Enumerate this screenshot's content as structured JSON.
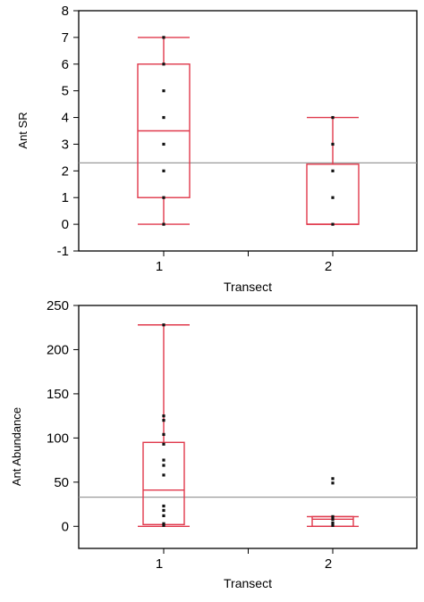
{
  "chart_data": [
    {
      "type": "box",
      "xlabel": "Transect",
      "ylabel": "Ant SR",
      "categories": [
        "1",
        "2"
      ],
      "ylim": [
        -1,
        8
      ],
      "yticks": [
        -1,
        0,
        1,
        2,
        3,
        4,
        5,
        6,
        7,
        8
      ],
      "reference_line": 2.3,
      "boxes": [
        {
          "category": "1",
          "whisker_low": 0,
          "q1": 1,
          "median": 3.5,
          "q3": 6,
          "whisker_high": 7,
          "points": [
            0,
            1,
            2,
            3,
            4,
            5,
            6,
            7
          ]
        },
        {
          "category": "2",
          "whisker_low": 0,
          "q1": 0,
          "median": 0,
          "q3": 2.25,
          "whisker_high": 4,
          "points": [
            0,
            1,
            2,
            3,
            4
          ]
        }
      ]
    },
    {
      "type": "box",
      "xlabel": "Transect",
      "ylabel": "Ant Abundance",
      "categories": [
        "1",
        "2"
      ],
      "ylim": [
        -25,
        250
      ],
      "yticks": [
        0,
        50,
        100,
        150,
        200,
        250
      ],
      "reference_line": 33,
      "boxes": [
        {
          "category": "1",
          "whisker_low": 0,
          "q1": 2,
          "median": 41,
          "q3": 95,
          "whisker_high": 228,
          "points": [
            1,
            3,
            12,
            18,
            23,
            58,
            69,
            75,
            93,
            104,
            120,
            125,
            228
          ]
        },
        {
          "category": "2",
          "whisker_low": 0,
          "q1": 0,
          "median": 8,
          "q3": 11,
          "whisker_high": 11,
          "points": [
            1,
            4,
            8,
            11,
            49,
            54
          ]
        }
      ]
    }
  ],
  "colors": {
    "box": "#e0384b",
    "reference_line": "#999999",
    "points": "#111111",
    "axis": "#000000"
  }
}
